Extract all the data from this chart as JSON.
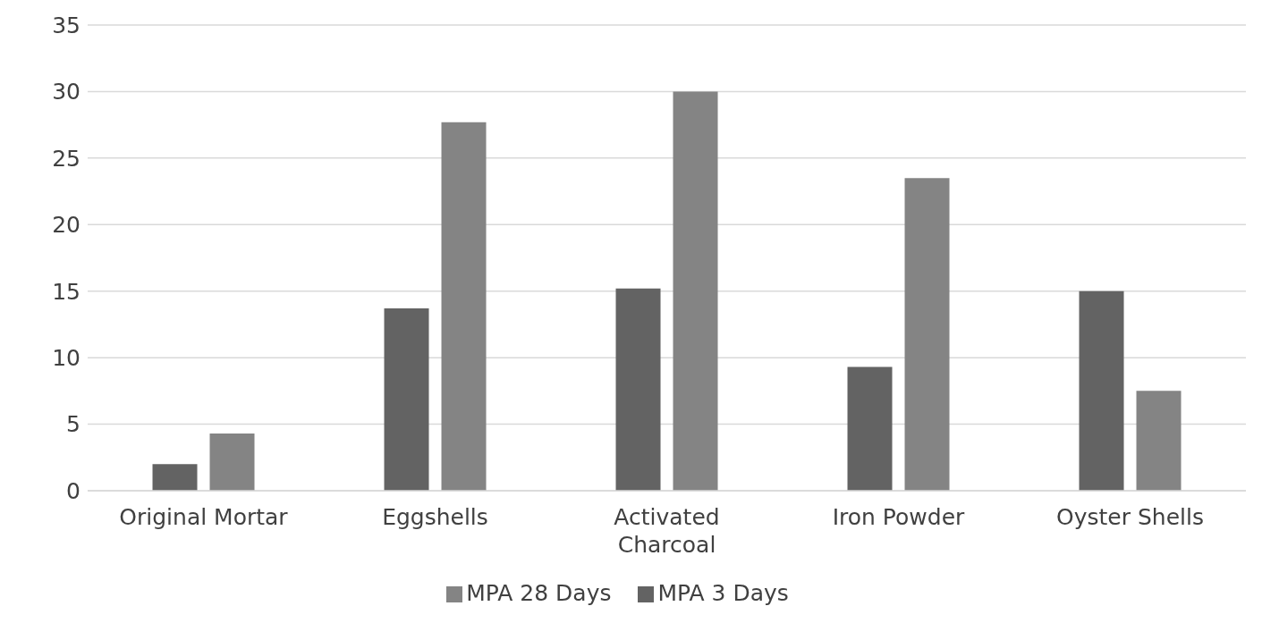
{
  "chart_data": {
    "type": "bar",
    "categories": [
      "Original Mortar",
      "Eggshells",
      "Activated Charcoal",
      "Iron Powder",
      "Oyster Shells"
    ],
    "series": [
      {
        "name": "MPA 3 Days",
        "color": "#636363",
        "values": [
          2.0,
          13.7,
          15.2,
          9.3,
          15.0
        ]
      },
      {
        "name": "MPA 28 Days",
        "color": "#848484",
        "values": [
          4.3,
          27.7,
          30.0,
          23.5,
          7.5
        ]
      }
    ],
    "ylim": [
      0,
      35
    ],
    "yticks": [
      0,
      5,
      10,
      15,
      20,
      25,
      30,
      35
    ],
    "grid": "y",
    "legend": "bottom"
  }
}
